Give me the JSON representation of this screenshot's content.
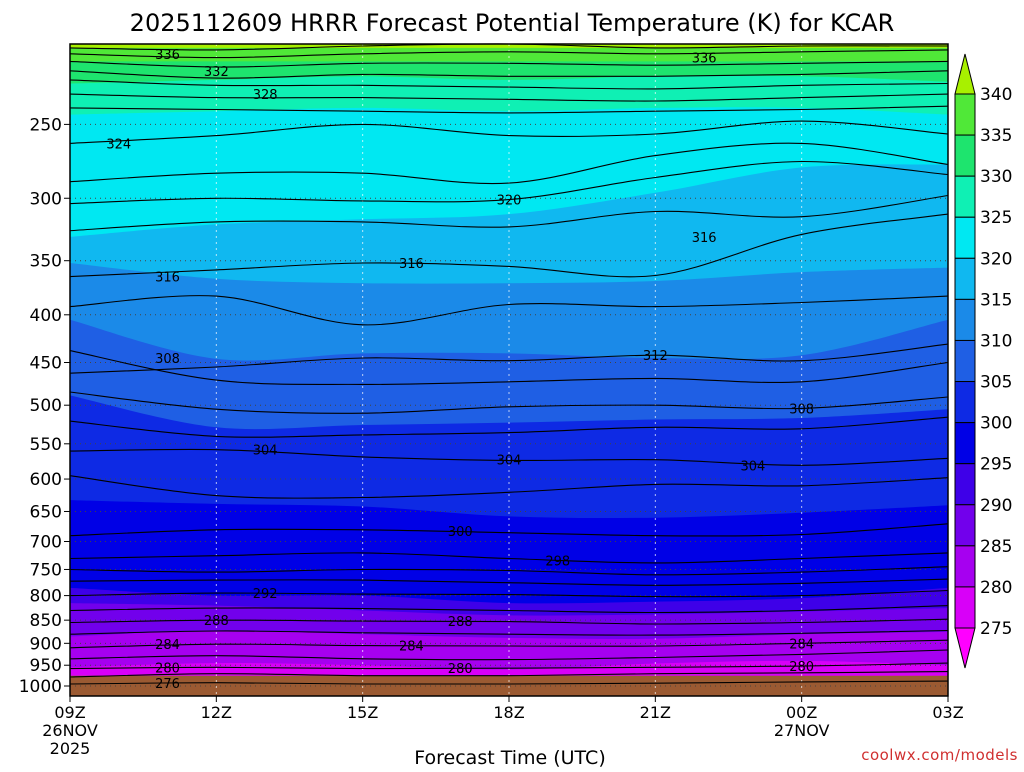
{
  "credit": "coolwx.com/models",
  "colors": {
    "credit": "#d03030",
    "ground": "#9b5a32",
    "contour": "#000000",
    "gridline": "#444444"
  },
  "chart_data": {
    "type": "contour",
    "title": "2025112609 HRRR Forecast Potential Temperature (K) for KCAR",
    "xlabel": "Forecast Time (UTC)",
    "ylabel": "",
    "x_ticks": [
      {
        "label": "09Z",
        "sub": [
          "26NOV",
          "2025"
        ],
        "hour": 0
      },
      {
        "label": "12Z",
        "sub": [],
        "hour": 3
      },
      {
        "label": "15Z",
        "sub": [],
        "hour": 6
      },
      {
        "label": "18Z",
        "sub": [],
        "hour": 9
      },
      {
        "label": "21Z",
        "sub": [],
        "hour": 12
      },
      {
        "label": "00Z",
        "sub": [
          "27NOV"
        ],
        "hour": 15
      },
      {
        "label": "03Z",
        "sub": [],
        "hour": 18
      }
    ],
    "xlim_hours": [
      0,
      18
    ],
    "y_ticks": [
      "250",
      "300",
      "350",
      "400",
      "450",
      "500",
      "550",
      "600",
      "650",
      "700",
      "750",
      "800",
      "850",
      "900",
      "950",
      "1000"
    ],
    "y_unit": "hPa",
    "ylim_hpa": [
      1025,
      205
    ],
    "pressure_scale": "log",
    "grid": true,
    "colorbar": {
      "levels": [
        "275",
        "280",
        "285",
        "290",
        "295",
        "300",
        "305",
        "310",
        "315",
        "320",
        "325",
        "330",
        "335",
        "340"
      ],
      "colors": [
        "#ff00ff",
        "#d800f8",
        "#a600f0",
        "#7200ec",
        "#3e00e8",
        "#0000e6",
        "#0e2ae4",
        "#1f5fe4",
        "#1b8ae8",
        "#10b8f0",
        "#00e8f2",
        "#0ff0b4",
        "#1ee46e",
        "#50e838",
        "#a8f000"
      ]
    },
    "color_fill_boundaries": [
      {
        "theta": 340,
        "hpa": [
          207,
          207,
          207,
          207,
          207,
          207,
          207
        ]
      },
      {
        "theta": 335,
        "hpa": [
          214,
          214,
          214,
          214,
          214,
          214,
          214
        ]
      },
      {
        "theta": 330,
        "hpa": [
          226,
          224,
          222,
          224,
          222,
          222,
          225
        ]
      },
      {
        "theta": 325,
        "hpa": [
          244,
          242,
          240,
          242,
          240,
          240,
          244
        ]
      },
      {
        "theta": 320,
        "hpa": [
          330,
          320,
          316,
          312,
          296,
          278,
          276
        ]
      },
      {
        "theta": 315,
        "hpa": [
          352,
          366,
          370,
          370,
          368,
          360,
          356
        ]
      },
      {
        "theta": 310,
        "hpa": [
          405,
          446,
          440,
          440,
          445,
          442,
          405
        ]
      },
      {
        "theta": 305,
        "hpa": [
          488,
          528,
          525,
          522,
          518,
          516,
          505
        ]
      },
      {
        "theta": 300,
        "hpa": [
          632,
          638,
          642,
          658,
          660,
          652,
          640
        ]
      },
      {
        "theta": 295,
        "hpa": [
          785,
          800,
          800,
          815,
          812,
          805,
          785
        ]
      },
      {
        "theta": 290,
        "hpa": [
          815,
          820,
          830,
          840,
          838,
          832,
          825
        ]
      },
      {
        "theta": 285,
        "hpa": [
          885,
          872,
          880,
          888,
          890,
          880,
          875
        ]
      },
      {
        "theta": 280,
        "hpa": [
          955,
          945,
          950,
          960,
          946,
          940,
          950
        ]
      }
    ],
    "contours": [
      {
        "theta": 338,
        "hpa": [
          207,
          208,
          206,
          205,
          207,
          206,
          206
        ]
      },
      {
        "theta": 336,
        "hpa": [
          210,
          212,
          210,
          209,
          210,
          209,
          208
        ]
      },
      {
        "theta": 334,
        "hpa": [
          214,
          217,
          215,
          215,
          216,
          215,
          214
        ]
      },
      {
        "theta": 332,
        "hpa": [
          219,
          223,
          221,
          222,
          222,
          221,
          219
        ]
      },
      {
        "theta": 330,
        "hpa": [
          224,
          227,
          227,
          228,
          229,
          227,
          226
        ]
      },
      {
        "theta": 328,
        "hpa": [
          232,
          234,
          234,
          235,
          236,
          234,
          232
        ]
      },
      {
        "theta": 326,
        "hpa": [
          240,
          241,
          242,
          243,
          242,
          241,
          239
        ]
      },
      {
        "theta": 324,
        "hpa": [
          262,
          257,
          250,
          257,
          256,
          248,
          256
        ]
      },
      {
        "theta": 322,
        "hpa": [
          288,
          282,
          282,
          289,
          270,
          262,
          276
        ]
      },
      {
        "theta": 320,
        "hpa": [
          304,
          300,
          302,
          301,
          285,
          274,
          283
        ]
      },
      {
        "theta": 318,
        "hpa": [
          325,
          318,
          318,
          322,
          310,
          314,
          298
        ]
      },
      {
        "theta": 316,
        "hpa": [
          364,
          358,
          352,
          355,
          363,
          328,
          312
        ]
      },
      {
        "theta": 314,
        "hpa": [
          392,
          382,
          410,
          390,
          392,
          388,
          382
        ]
      },
      {
        "theta": 312,
        "hpa": [
          462,
          455,
          445,
          448,
          442,
          448,
          430
        ]
      },
      {
        "theta": 310,
        "hpa": [
          437,
          470,
          475,
          472,
          468,
          472,
          450
        ]
      },
      {
        "theta": 308,
        "hpa": [
          484,
          505,
          510,
          502,
          500,
          504,
          490
        ]
      },
      {
        "theta": 306,
        "hpa": [
          520,
          540,
          538,
          535,
          528,
          530,
          515
        ]
      },
      {
        "theta": 304,
        "hpa": [
          560,
          558,
          568,
          573,
          572,
          580,
          570
        ]
      },
      {
        "theta": 302,
        "hpa": [
          595,
          625,
          628,
          620,
          608,
          610,
          598
        ]
      },
      {
        "theta": 300,
        "hpa": [
          690,
          680,
          680,
          685,
          690,
          688,
          670
        ]
      },
      {
        "theta": 298,
        "hpa": [
          730,
          725,
          720,
          730,
          738,
          730,
          720
        ]
      },
      {
        "theta": 296,
        "hpa": [
          750,
          755,
          750,
          752,
          760,
          755,
          745
        ]
      },
      {
        "theta": 294,
        "hpa": [
          772,
          770,
          770,
          775,
          780,
          776,
          768
        ]
      },
      {
        "theta": 292,
        "hpa": [
          800,
          795,
          797,
          798,
          802,
          800,
          790
        ]
      },
      {
        "theta": 290,
        "hpa": [
          830,
          825,
          826,
          830,
          834,
          830,
          820
        ]
      },
      {
        "theta": 288,
        "hpa": [
          855,
          850,
          852,
          853,
          858,
          855,
          848
        ]
      },
      {
        "theta": 286,
        "hpa": [
          880,
          873,
          877,
          880,
          882,
          878,
          872
        ]
      },
      {
        "theta": 284,
        "hpa": [
          910,
          902,
          905,
          906,
          906,
          900,
          893
        ]
      },
      {
        "theta": 282,
        "hpa": [
          935,
          928,
          935,
          937,
          932,
          925,
          915
        ]
      },
      {
        "theta": 280,
        "hpa": [
          958,
          955,
          958,
          957,
          955,
          952,
          945
        ]
      },
      {
        "theta": 278,
        "hpa": [
          978,
          970,
          975,
          975,
          970,
          968,
          965
        ]
      },
      {
        "theta": 276,
        "hpa": [
          995,
          992,
          995,
          995,
          993,
          990,
          988
        ]
      }
    ],
    "contour_labels": [
      {
        "text": "336",
        "hour": 2.0,
        "hpa": 210
      },
      {
        "text": "332",
        "hour": 3.0,
        "hpa": 219
      },
      {
        "text": "328",
        "hour": 4.0,
        "hpa": 232
      },
      {
        "text": "336",
        "hour": 13.0,
        "hpa": 212
      },
      {
        "text": "324",
        "hour": 1.0,
        "hpa": 262
      },
      {
        "text": "320",
        "hour": 9.0,
        "hpa": 301
      },
      {
        "text": "316",
        "hour": 2.0,
        "hpa": 364
      },
      {
        "text": "316",
        "hour": 7.0,
        "hpa": 352
      },
      {
        "text": "316",
        "hour": 13.0,
        "hpa": 330
      },
      {
        "text": "312",
        "hour": 12.0,
        "hpa": 442
      },
      {
        "text": "308",
        "hour": 2.0,
        "hpa": 445
      },
      {
        "text": "308",
        "hour": 15.0,
        "hpa": 504
      },
      {
        "text": "304",
        "hour": 4.0,
        "hpa": 558
      },
      {
        "text": "304",
        "hour": 9.0,
        "hpa": 572
      },
      {
        "text": "304",
        "hour": 14.0,
        "hpa": 580
      },
      {
        "text": "300",
        "hour": 8.0,
        "hpa": 682
      },
      {
        "text": "298",
        "hour": 10.0,
        "hpa": 734
      },
      {
        "text": "292",
        "hour": 4.0,
        "hpa": 795
      },
      {
        "text": "288",
        "hour": 3.0,
        "hpa": 850
      },
      {
        "text": "288",
        "hour": 8.0,
        "hpa": 852
      },
      {
        "text": "284",
        "hour": 2.0,
        "hpa": 902
      },
      {
        "text": "284",
        "hour": 7.0,
        "hpa": 905
      },
      {
        "text": "284",
        "hour": 15.0,
        "hpa": 900
      },
      {
        "text": "280",
        "hour": 2.0,
        "hpa": 955
      },
      {
        "text": "280",
        "hour": 8.0,
        "hpa": 957
      },
      {
        "text": "280",
        "hour": 15.0,
        "hpa": 952
      },
      {
        "text": "276",
        "hour": 2.0,
        "hpa": 993
      }
    ],
    "ground_hpa": 975
  }
}
